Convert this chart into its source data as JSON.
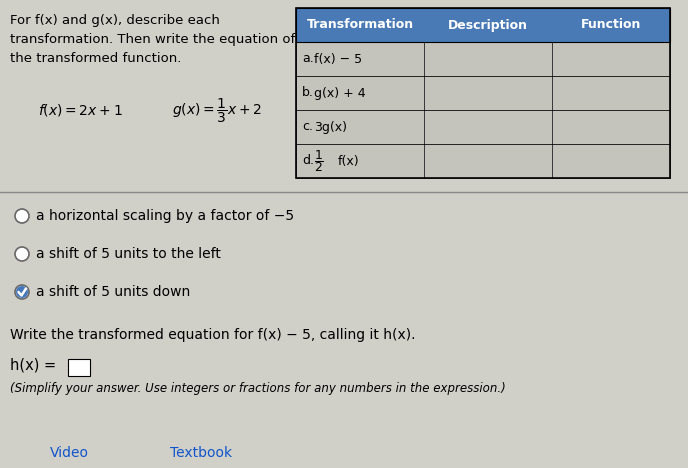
{
  "bg_color": "#d0cfc8",
  "white_color": "#ffffff",
  "header_color": "#4a7ab5",
  "text_color": "#000000",
  "title_text": "For f(x) and g(x), describe each\ntransformation. Then write the equation of\nthe transformed function.",
  "table_headers": [
    "Transformation",
    "Description",
    "Function"
  ],
  "radio_options": [
    {
      "text": "a horizontal scaling by a factor of −5",
      "selected": false
    },
    {
      "text": "a shift of 5 units to the left",
      "selected": false
    },
    {
      "text": "a shift of 5 units down",
      "selected": true
    }
  ],
  "write_text": "Write the transformed equation for f(x) − 5, calling it h(x).",
  "hx_label": "h(x) = ",
  "simplify_text": "(Simplify your answer. Use integers or fractions for any numbers in the expression.)",
  "bottom_links": [
    "Video",
    "Textbook"
  ]
}
